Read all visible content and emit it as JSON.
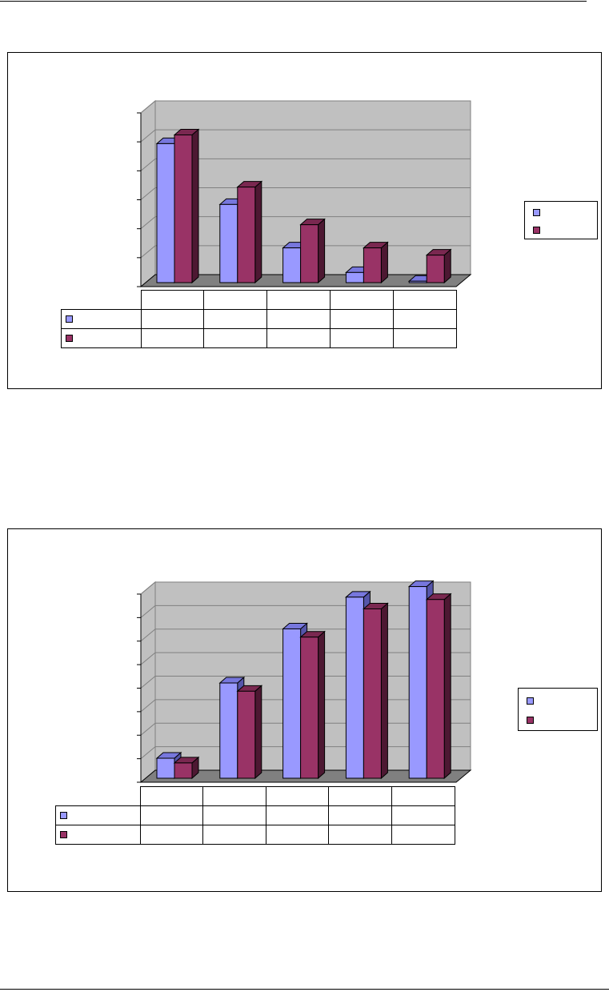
{
  "colors": {
    "series1": "#9999ff",
    "series1_top": "#7777dd",
    "series1_side": "#5555aa",
    "series2": "#993366",
    "series2_top": "#7a2850",
    "series2_side": "#4d1832",
    "wall": "#c0c0c0",
    "floor": "#808080"
  },
  "chart_data": [
    {
      "type": "bar",
      "title": "",
      "xlabel": "",
      "ylabel": "",
      "categories": [
        "",
        "",
        "",
        "",
        ""
      ],
      "ylim": [
        0,
        6
      ],
      "grid": true,
      "legend": "right",
      "series": [
        {
          "values": [
            4.8,
            2.7,
            1.2,
            0.35,
            0.05
          ]
        },
        {
          "values": [
            5.1,
            3.3,
            2.0,
            1.2,
            0.95
          ]
        }
      ]
    },
    {
      "type": "bar",
      "title": "",
      "xlabel": "",
      "ylabel": "",
      "categories": [
        "",
        "",
        "",
        "",
        ""
      ],
      "ylim": [
        0,
        8
      ],
      "grid": true,
      "legend": "right",
      "series": [
        {
          "values": [
            0.85,
            4.05,
            6.35,
            7.7,
            8.15
          ]
        },
        {
          "values": [
            0.65,
            3.7,
            6.0,
            7.2,
            7.6
          ]
        }
      ]
    }
  ]
}
